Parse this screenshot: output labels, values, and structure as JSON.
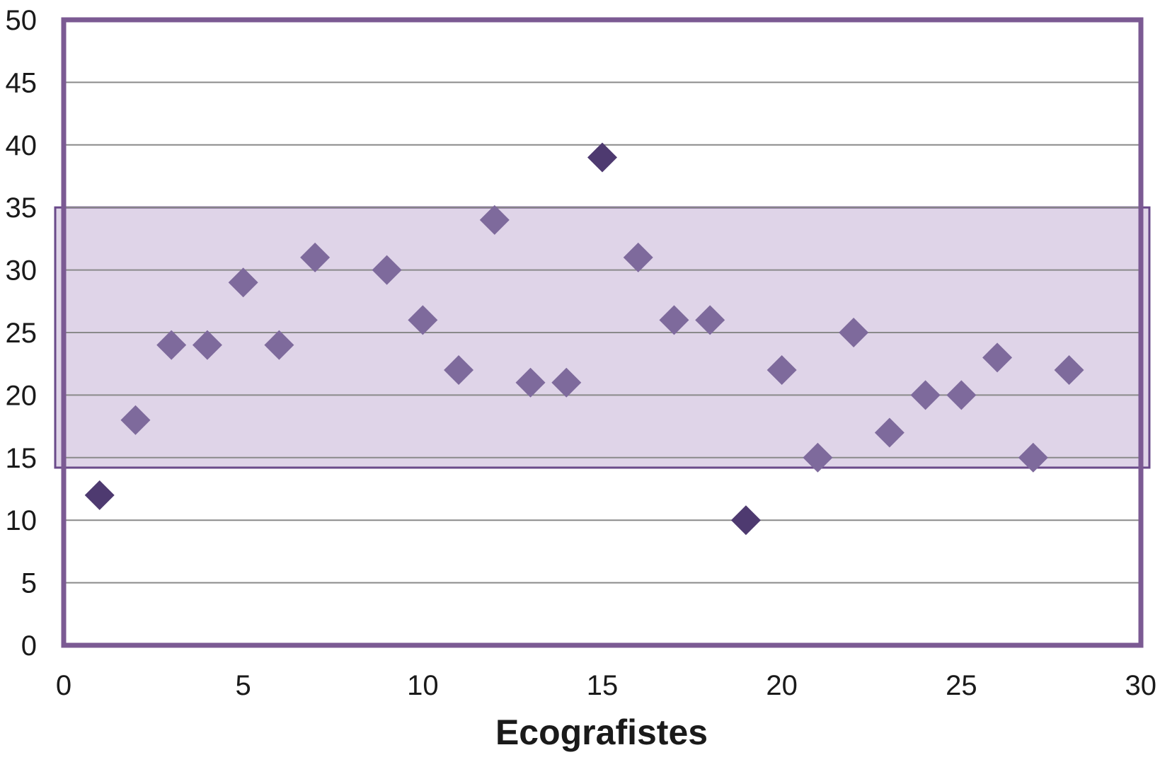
{
  "chart_data": {
    "type": "scatter",
    "title": "",
    "xlabel": "Ecografistes",
    "ylabel": "",
    "xlim": [
      0,
      30
    ],
    "ylim": [
      0,
      50
    ],
    "x_ticks": [
      "0",
      "5",
      "10",
      "15",
      "20",
      "25",
      "30"
    ],
    "y_ticks": [
      "0",
      "5",
      "10",
      "15",
      "20",
      "25",
      "30",
      "35",
      "40",
      "45",
      "50"
    ],
    "grid": "horizontal",
    "marker": "diamond",
    "colors": {
      "frame": "#7b5a93",
      "gridline": "#8a8a8a",
      "band_fill": "#dfd4e8",
      "band_border": "#6a4a8a",
      "point_inside": "#7e6a9c",
      "point_outside": "#4e3a70"
    },
    "reference_band": {
      "y_min": 14.2,
      "y_max": 35
    },
    "series": [
      {
        "points": [
          {
            "x": 1,
            "y": 12
          },
          {
            "x": 2,
            "y": 18
          },
          {
            "x": 3,
            "y": 24
          },
          {
            "x": 4,
            "y": 24
          },
          {
            "x": 5,
            "y": 29
          },
          {
            "x": 6,
            "y": 24
          },
          {
            "x": 7,
            "y": 31
          },
          {
            "x": 9,
            "y": 30
          },
          {
            "x": 10,
            "y": 26
          },
          {
            "x": 11,
            "y": 22
          },
          {
            "x": 12,
            "y": 34
          },
          {
            "x": 13,
            "y": 21
          },
          {
            "x": 14,
            "y": 21
          },
          {
            "x": 15,
            "y": 39
          },
          {
            "x": 16,
            "y": 31
          },
          {
            "x": 17,
            "y": 26
          },
          {
            "x": 18,
            "y": 26
          },
          {
            "x": 19,
            "y": 10
          },
          {
            "x": 20,
            "y": 22
          },
          {
            "x": 21,
            "y": 15
          },
          {
            "x": 22,
            "y": 25
          },
          {
            "x": 23,
            "y": 17
          },
          {
            "x": 24,
            "y": 20
          },
          {
            "x": 25,
            "y": 20
          },
          {
            "x": 26,
            "y": 23
          },
          {
            "x": 27,
            "y": 15
          },
          {
            "x": 28,
            "y": 22
          }
        ]
      }
    ]
  }
}
